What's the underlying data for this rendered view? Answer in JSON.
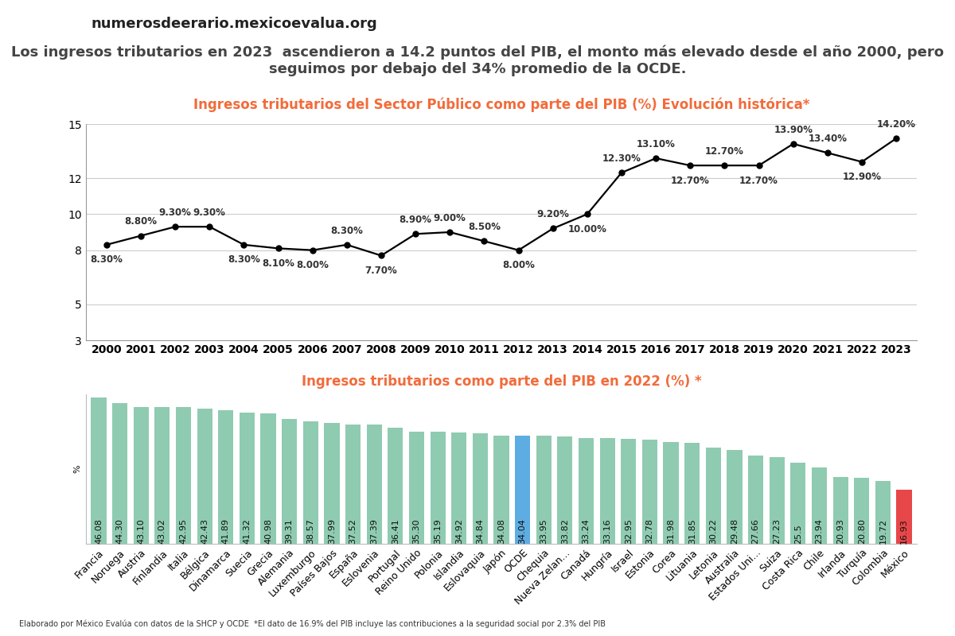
{
  "header": "numerosdeerario.mexicoevalua.org",
  "subtitle": "Los ingresos tributarios en 2023  ascendieron a 14.2 puntos del PIB, el monto más elevado desde el año 2000, pero seguimos por debajo del 34% promedio de la OCDE.",
  "footer": "Elaborado por México Evalúa con datos de la SHCP y OCDE  *El dato de 16.9% del PIB incluye las contribuciones a la seguridad social por 2.3% del PIB",
  "chart_data": [
    {
      "type": "line",
      "title": "Ingresos tributarios del Sector Público como parte del PIB (%) Evolución histórica*",
      "categories": [
        "2000",
        "2001",
        "2002",
        "2003",
        "2004",
        "2005",
        "2006",
        "2007",
        "2008",
        "2009",
        "2010",
        "2011",
        "2012",
        "2013",
        "2014",
        "2015",
        "2016",
        "2017",
        "2018",
        "2019",
        "2020",
        "2021",
        "2022",
        "2023"
      ],
      "values": [
        8.3,
        8.8,
        9.3,
        9.3,
        8.3,
        8.1,
        8.0,
        8.3,
        7.7,
        8.9,
        9.0,
        8.5,
        8.0,
        9.2,
        10.0,
        12.3,
        13.1,
        12.7,
        12.7,
        12.7,
        13.9,
        13.4,
        12.9,
        14.2
      ],
      "value_labels": [
        "8.30%",
        "8.80%",
        "9.30%",
        "9.30%",
        "8.30%",
        "8.10%",
        "8.00%",
        "8.30%",
        "7.70%",
        "8.90%",
        "9.00%",
        "8.50%",
        "8.00%",
        "9.20%",
        "10.00%",
        "12.30%",
        "13.10%",
        "12.70%",
        "12.70%",
        "12.70%",
        "13.90%",
        "13.40%",
        "12.90%",
        "14.20%"
      ],
      "data_labels": true,
      "color": "#000000",
      "marker": "o",
      "ylim": [
        3,
        15
      ],
      "yticks": [
        3,
        5,
        8,
        10,
        12,
        15
      ],
      "grid": true
    },
    {
      "type": "bar",
      "title": "Ingresos tributarios como parte del PIB en 2022 (%) *",
      "y_label": "%",
      "categories": [
        "Francia",
        "Noruega",
        "Austria",
        "Finlandia",
        "Italia",
        "Bélgica",
        "Dinamarca",
        "Suecia",
        "Grecia",
        "Alemania",
        "Luxemburgo",
        "Países Bajos",
        "España",
        "Eslovenia",
        "Portugal",
        "Reino Unido",
        "Polonia",
        "Islandia",
        "Eslovaquia",
        "Japón",
        "OCDE",
        "Chequia",
        "Nueva Zelan...",
        "Canadá",
        "Hungría",
        "Israel",
        "Estonia",
        "Corea",
        "Lituania",
        "Letonia",
        "Australia",
        "Estados Uni...",
        "Suiza",
        "Costa Rica",
        "Chile",
        "Irlanda",
        "Turquía",
        "Colombia",
        "México"
      ],
      "values": [
        46.08,
        44.3,
        43.1,
        43.02,
        42.95,
        42.43,
        41.89,
        41.32,
        40.98,
        39.31,
        38.57,
        37.99,
        37.52,
        37.39,
        36.41,
        35.3,
        35.19,
        34.92,
        34.84,
        34.08,
        34.04,
        33.95,
        33.82,
        33.24,
        33.16,
        32.95,
        32.78,
        31.98,
        31.85,
        30.22,
        29.48,
        27.66,
        27.23,
        25.5,
        23.94,
        20.93,
        20.8,
        19.72,
        16.93
      ],
      "value_labels": [
        "46.08",
        "44.30",
        "43.10",
        "43.02",
        "42.95",
        "42.43",
        "41.89",
        "41.32",
        "40.98",
        "39.31",
        "38.57",
        "37.99",
        "37.52",
        "37.39",
        "36.41",
        "35.30",
        "35.19",
        "34.92",
        "34.84",
        "34.08",
        "34.04",
        "33.95",
        "33.82",
        "33.24",
        "33.16",
        "32.95",
        "32.78",
        "31.98",
        "31.85",
        "30.22",
        "29.48",
        "27.66",
        "27.23",
        "25.5",
        "23.94",
        "20.93",
        "20.80",
        "19.72",
        "16.93"
      ],
      "data_labels": true,
      "colors": [
        "#8fcbb1",
        "#8fcbb1",
        "#8fcbb1",
        "#8fcbb1",
        "#8fcbb1",
        "#8fcbb1",
        "#8fcbb1",
        "#8fcbb1",
        "#8fcbb1",
        "#8fcbb1",
        "#8fcbb1",
        "#8fcbb1",
        "#8fcbb1",
        "#8fcbb1",
        "#8fcbb1",
        "#8fcbb1",
        "#8fcbb1",
        "#8fcbb1",
        "#8fcbb1",
        "#8fcbb1",
        "#5dade2",
        "#8fcbb1",
        "#8fcbb1",
        "#8fcbb1",
        "#8fcbb1",
        "#8fcbb1",
        "#8fcbb1",
        "#8fcbb1",
        "#8fcbb1",
        "#8fcbb1",
        "#8fcbb1",
        "#8fcbb1",
        "#8fcbb1",
        "#8fcbb1",
        "#8fcbb1",
        "#8fcbb1",
        "#8fcbb1",
        "#8fcbb1",
        "#e8474a"
      ],
      "ylim": [
        0,
        47
      ],
      "tick_labels": "x"
    }
  ]
}
